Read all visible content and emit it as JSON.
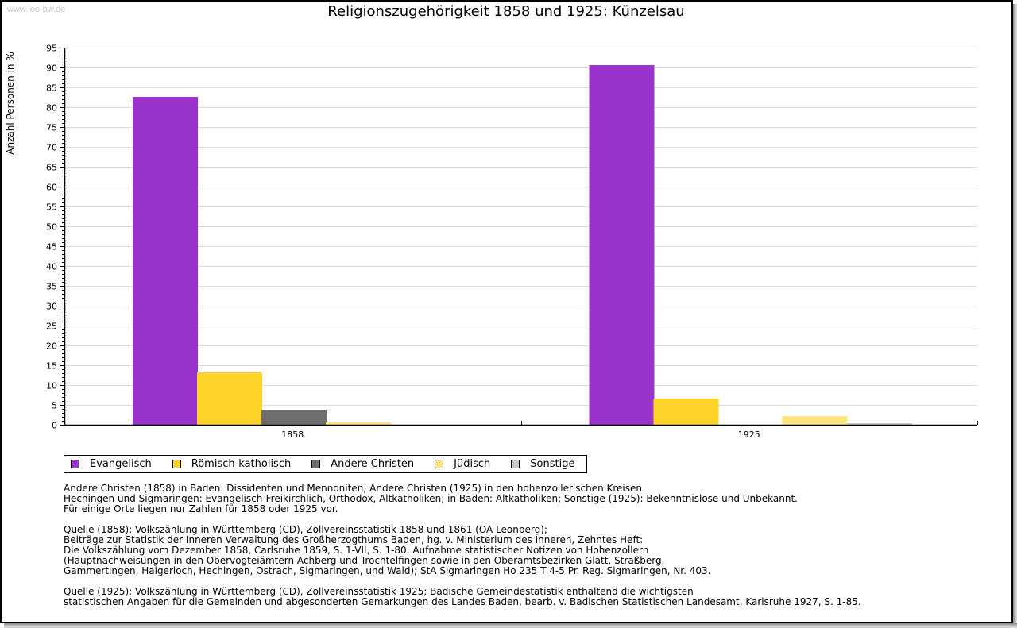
{
  "watermark": "www.leo-bw.de",
  "chart_data": {
    "type": "bar",
    "title": "Religionszugehörigkeit 1858 und 1925: Künzelsau",
    "xlabel": "",
    "ylabel": "Anzahl Personen in %",
    "ylim": [
      0,
      95
    ],
    "ytick_step": 5,
    "yticks": [
      "0",
      "5",
      "10",
      "15",
      "20",
      "25",
      "30",
      "35",
      "40",
      "45",
      "50",
      "55",
      "60",
      "65",
      "70",
      "75",
      "80",
      "85",
      "90",
      "95"
    ],
    "grid": true,
    "legend_position": "bottom-left",
    "categories": [
      "1858",
      "1925"
    ],
    "series": [
      {
        "name": "Evangelisch",
        "color": "#9933cc",
        "values": [
          82.6,
          90.6
        ]
      },
      {
        "name": "Römisch-katholisch",
        "color": "#ffd42a",
        "values": [
          13.2,
          6.6
        ]
      },
      {
        "name": "Andere Christen",
        "color": "#6e6e6e",
        "values": [
          3.6,
          0
        ]
      },
      {
        "name": "Jüdisch",
        "color": "#ffe680",
        "values": [
          0.6,
          2.2
        ]
      },
      {
        "name": "Sonstige",
        "color": "#c8c8c8",
        "values": [
          0,
          0.4
        ]
      }
    ]
  },
  "notes": [
    [
      "Andere Christen (1858) in Baden: Dissidenten und Mennoniten; Andere Christen (1925) in den hohenzollerischen Kreisen",
      "Hechingen und Sigmaringen: Evangelisch-Freikirchlich, Orthodox, Altkatholiken; in Baden: Altkatholiken; Sonstige (1925): Bekenntnislose und Unbekannt.",
      "Für einige Orte liegen nur Zahlen für 1858 oder 1925 vor."
    ],
    [
      "Quelle (1858): Volkszählung in Württemberg (CD), Zollvereinsstatistik 1858 und 1861 (OA Leonberg);",
      "Beiträge zur Statistik der Inneren Verwaltung des Großherzogthums Baden, hg. v. Ministerium des Inneren, Zehntes Heft:",
      "Die Volkszählung vom Dezember 1858, Carlsruhe 1859, S. 1-VII, S. 1-80. Aufnahme statistischer Notizen von Hohenzollern",
      "(Hauptnachweisungen in den Obervogteiämtern Achberg und Trochtelfingen sowie in den Oberamtsbezirken Glatt, Straßberg,",
      "Gammertingen, Haigerloch, Hechingen, Ostrach, Sigmaringen, und Wald); StA Sigmaringen Ho 235 T 4-5 Pr. Reg. Sigmaringen, Nr. 403."
    ],
    [
      "Quelle (1925): Volkszählung in Württemberg (CD), Zollvereinsstatistik 1925; Badische Gemeindestatistik enthaltend die wichtigsten",
      "statistischen Angaben für die Gemeinden und abgesonderten Gemarkungen des Landes Baden, bearb. v. Badischen Statistischen Landesamt, Karlsruhe 1927, S. 1-85."
    ]
  ]
}
